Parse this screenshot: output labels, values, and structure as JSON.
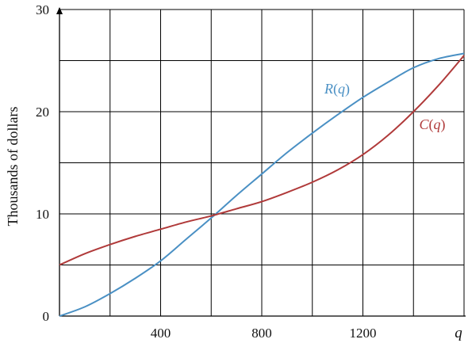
{
  "chart_data": {
    "type": "line",
    "title": "",
    "xlabel": "q",
    "ylabel": "Thousands of dollars",
    "xlim": [
      0,
      1600
    ],
    "ylim": [
      0,
      30
    ],
    "grid": true,
    "x_ticks": [
      400,
      800,
      1200
    ],
    "y_ticks": [
      0,
      10,
      20,
      30
    ],
    "series": [
      {
        "name": "R(q)",
        "color": "#4a90c4",
        "x": [
          0,
          100,
          200,
          300,
          400,
          500,
          600,
          700,
          800,
          900,
          1000,
          1100,
          1200,
          1300,
          1400,
          1500,
          1600
        ],
        "y": [
          0,
          0.9,
          2.2,
          3.7,
          5.4,
          7.5,
          9.6,
          11.8,
          13.9,
          16.0,
          17.9,
          19.7,
          21.4,
          22.9,
          24.3,
          25.2,
          25.7
        ]
      },
      {
        "name": "C(q)",
        "color": "#b03a3a",
        "x": [
          0,
          100,
          200,
          300,
          400,
          500,
          600,
          700,
          800,
          900,
          1000,
          1100,
          1200,
          1300,
          1400,
          1500,
          1600
        ],
        "y": [
          5.0,
          6.1,
          7.0,
          7.8,
          8.5,
          9.2,
          9.8,
          10.5,
          11.2,
          12.1,
          13.1,
          14.3,
          15.8,
          17.7,
          20.0,
          22.6,
          25.5
        ]
      }
    ]
  }
}
